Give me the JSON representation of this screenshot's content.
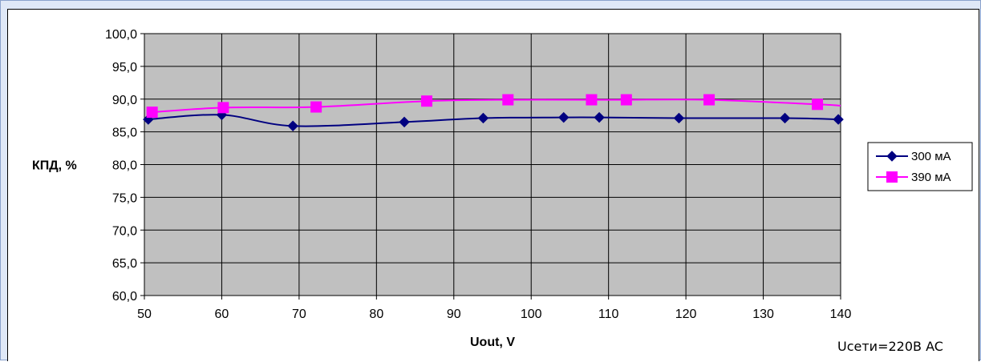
{
  "chart_data": {
    "type": "line",
    "xlabel": "Uout,  V",
    "ylabel": "КПД, %",
    "xlim": [
      50,
      140
    ],
    "ylim": [
      60,
      100
    ],
    "x_ticks": [
      "50",
      "60",
      "70",
      "80",
      "90",
      "100",
      "110",
      "120",
      "130",
      "140"
    ],
    "y_ticks": [
      "60,0",
      "65,0",
      "70,0",
      "75,0",
      "80,0",
      "85,0",
      "90,0",
      "95,0",
      "100,0"
    ],
    "grid": true,
    "plot_background": "#c0c0c0",
    "legend_position": "right",
    "annotation": "Uсети=220В AC",
    "series": [
      {
        "name": "300 мА",
        "color": "#000080",
        "marker": "diamond",
        "x": [
          50.5,
          60.0,
          69.2,
          83.6,
          93.8,
          104.2,
          108.8,
          119.1,
          132.8,
          139.7
        ],
        "y": [
          86.9,
          87.6,
          85.9,
          86.5,
          87.1,
          87.2,
          87.2,
          87.1,
          87.1,
          86.9
        ]
      },
      {
        "name": "390 мА",
        "color": "#ff00ff",
        "marker": "square",
        "x": [
          51.0,
          60.2,
          72.2,
          86.5,
          97.0,
          107.8,
          112.3,
          123.0,
          137.0
        ],
        "y": [
          88.0,
          88.7,
          88.8,
          89.7,
          89.9,
          89.9,
          89.9,
          89.9,
          89.2
        ],
        "tail": {
          "x": 140.0,
          "y": 89.0
        }
      }
    ]
  }
}
